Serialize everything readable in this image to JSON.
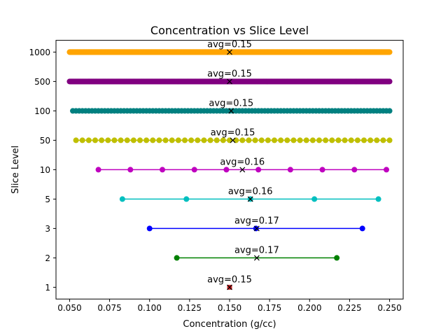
{
  "chart_data": {
    "type": "line",
    "title": "Concentration vs Slice Level",
    "xlabel": "Concentration (g/cc)",
    "ylabel": "Slice Level",
    "xlim": [
      0.0415,
      0.2585
    ],
    "x_ticks": [
      0.05,
      0.075,
      0.1,
      0.125,
      0.15,
      0.175,
      0.2,
      0.225,
      0.25
    ],
    "x_tick_labels": [
      "0.050",
      "0.075",
      "0.100",
      "0.125",
      "0.150",
      "0.175",
      "0.200",
      "0.225",
      "0.250"
    ],
    "y_categories": [
      "1",
      "2",
      "3",
      "5",
      "10",
      "50",
      "100",
      "500",
      "1000"
    ],
    "grid": false,
    "series": [
      {
        "level": "1",
        "count": 1,
        "x_min": 0.15,
        "x_max": 0.15,
        "avg": 0.15,
        "avg_label": "avg=0.15",
        "color": "#d62728",
        "marker_style": "square"
      },
      {
        "level": "2",
        "count": 2,
        "x_min": 0.117,
        "x_max": 0.217,
        "avg": 0.167,
        "avg_label": "avg=0.17",
        "color": "#008000",
        "marker_style": "circle"
      },
      {
        "level": "3",
        "count": 3,
        "x_min": 0.1,
        "x_max": 0.233,
        "avg": 0.167,
        "avg_label": "avg=0.17",
        "color": "#0000ff",
        "marker_style": "circle"
      },
      {
        "level": "5",
        "count": 5,
        "x_min": 0.083,
        "x_max": 0.243,
        "avg": 0.163,
        "avg_label": "avg=0.16",
        "color": "#00bfbf",
        "marker_style": "circle"
      },
      {
        "level": "10",
        "count": 10,
        "x_min": 0.068,
        "x_max": 0.248,
        "avg": 0.158,
        "avg_label": "avg=0.16",
        "color": "#bf00bf",
        "marker_style": "circle"
      },
      {
        "level": "50",
        "count": 50,
        "x_min": 0.054,
        "x_max": 0.25,
        "avg": 0.152,
        "avg_label": "avg=0.15",
        "color": "#bfbf00",
        "marker_style": "circle"
      },
      {
        "level": "100",
        "count": 100,
        "x_min": 0.052,
        "x_max": 0.25,
        "avg": 0.151,
        "avg_label": "avg=0.15",
        "color": "#008080",
        "marker_style": "circle"
      },
      {
        "level": "500",
        "count": 500,
        "x_min": 0.05,
        "x_max": 0.25,
        "avg": 0.15,
        "avg_label": "avg=0.15",
        "color": "#800080",
        "marker_style": "circle"
      },
      {
        "level": "1000",
        "count": 1000,
        "x_min": 0.05,
        "x_max": 0.25,
        "avg": 0.15,
        "avg_label": "avg=0.15",
        "color": "#ffa500",
        "marker_style": "circle"
      }
    ]
  }
}
